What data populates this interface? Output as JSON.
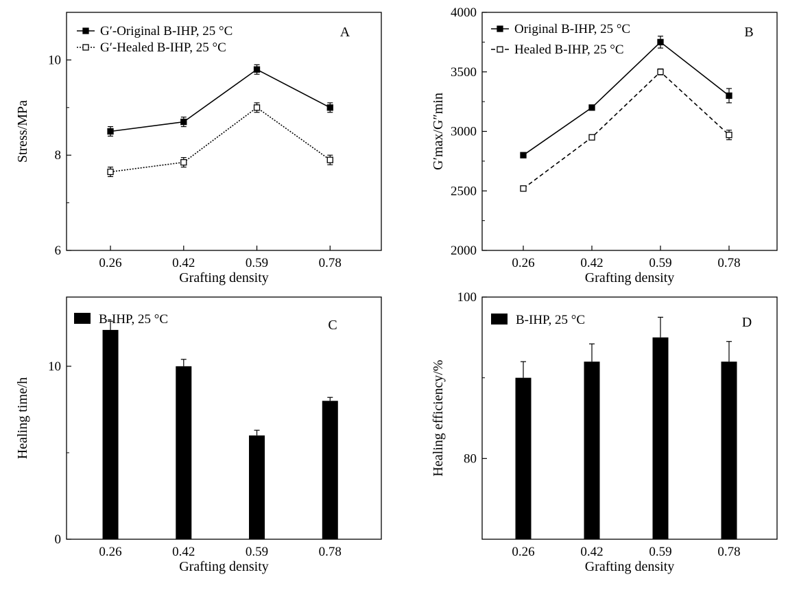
{
  "figure": {
    "colors": {
      "ink": "#000000",
      "paper": "#ffffff"
    }
  },
  "chart_data": [
    {
      "panel": "A",
      "type": "line",
      "xlabel": "Grafting density",
      "ylabel": "Stress/MPa",
      "categories": [
        "0.26",
        "0.42",
        "0.59",
        "0.78"
      ],
      "ylim": [
        6,
        11
      ],
      "yticks": [
        6,
        8,
        10
      ],
      "legend_position": "top-left",
      "series": [
        {
          "name": "G′-Original B-IHP, 25 °C",
          "marker": "filled-square",
          "line": "solid",
          "values": [
            8.5,
            8.7,
            9.8,
            9.0
          ],
          "errors": [
            0.1,
            0.1,
            0.1,
            0.1
          ]
        },
        {
          "name": "G′-Healed B-IHP, 25 °C",
          "marker": "open-square",
          "line": "dotted",
          "values": [
            7.65,
            7.85,
            9.0,
            7.9
          ],
          "errors": [
            0.1,
            0.1,
            0.1,
            0.1
          ]
        }
      ]
    },
    {
      "panel": "B",
      "type": "line",
      "xlabel": "Grafting density",
      "ylabel": "G′max/G″min",
      "categories": [
        "0.26",
        "0.42",
        "0.59",
        "0.78"
      ],
      "ylim": [
        2000,
        4000
      ],
      "yticks": [
        2000,
        2500,
        3000,
        3500,
        4000
      ],
      "legend_position": "top-left",
      "series": [
        {
          "name": "Original B-IHP, 25 °C",
          "marker": "filled-square",
          "line": "solid",
          "values": [
            2800,
            3200,
            3750,
            3300
          ],
          "errors": [
            0,
            20,
            50,
            60
          ]
        },
        {
          "name": "Healed B-IHP, 25 °C",
          "marker": "open-square",
          "line": "dashed",
          "values": [
            2520,
            2950,
            3500,
            2970
          ],
          "errors": [
            0,
            0,
            25,
            40
          ]
        }
      ]
    },
    {
      "panel": "C",
      "type": "bar",
      "xlabel": "Grafting density",
      "ylabel": "Healing time/h",
      "categories": [
        "0.26",
        "0.42",
        "0.59",
        "0.78"
      ],
      "ylim": [
        0,
        14
      ],
      "yticks": [
        0,
        10
      ],
      "legend_position": "top-left",
      "series": [
        {
          "name": "B-IHP, 25 °C",
          "values": [
            12.1,
            10.0,
            6.0,
            8.0
          ],
          "errors": [
            0.5,
            0.4,
            0.3,
            0.2
          ]
        }
      ]
    },
    {
      "panel": "D",
      "type": "bar",
      "xlabel": "Grafting density",
      "ylabel": "Healing efficiency/%",
      "categories": [
        "0.26",
        "0.42",
        "0.59",
        "0.78"
      ],
      "ylim": [
        70,
        100
      ],
      "yticks": [
        80,
        100
      ],
      "legend_position": "top-left",
      "series": [
        {
          "name": "B-IHP, 25 °C",
          "values": [
            90.0,
            92.0,
            95.0,
            92.0
          ],
          "errors": [
            2.0,
            2.2,
            2.5,
            2.5
          ]
        }
      ]
    }
  ]
}
